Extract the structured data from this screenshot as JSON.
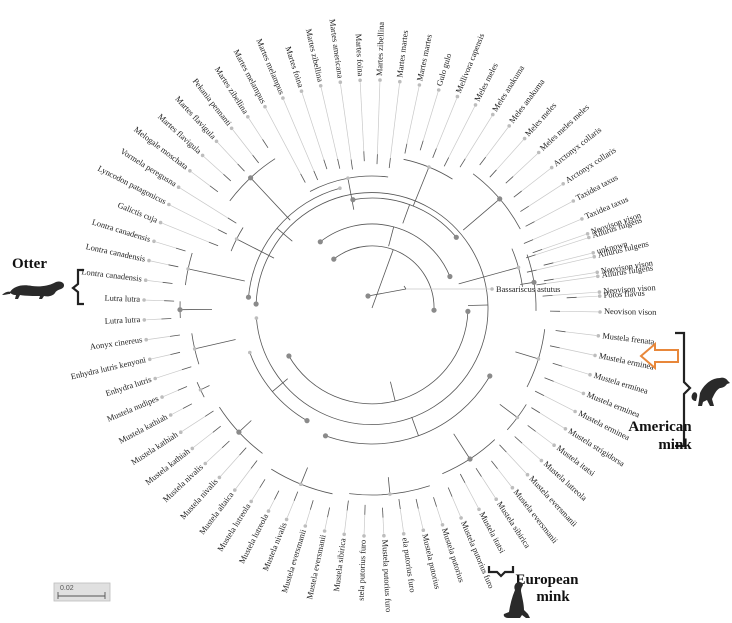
{
  "root_label": "Bassariscus astutus",
  "scale_bar": {
    "label": "0.02"
  },
  "groups": {
    "otter": "Otter",
    "american_mink": [
      "American",
      "mink"
    ],
    "european_mink": [
      "European",
      "mink"
    ]
  },
  "colors": {
    "branch": "#555555",
    "leaf_line": "#c8c8c8",
    "node_dark": "#8a8a8a",
    "node_light": "#bdbdbd",
    "bracket": "#222222",
    "arrow": "#e8873a",
    "animal": "#2a2a2a"
  },
  "leaves": [
    {
      "label": "Neovison vison",
      "angle": 19
    },
    {
      "label": "unknown",
      "angle": 14
    },
    {
      "label": "Neovison vison",
      "angle": 9
    },
    {
      "label": "Neovison vison",
      "angle": 4
    },
    {
      "label": "Neovison vison",
      "angle": -1
    },
    {
      "label": "Mustela frenata",
      "angle": -7
    },
    {
      "label": "Mustela erminea",
      "angle": -12
    },
    {
      "label": "Mustela erminea",
      "angle": -17
    },
    {
      "label": "Mustela erminea",
      "angle": -22
    },
    {
      "label": "Mustela erminea",
      "angle": -27
    },
    {
      "label": "Mustela strigidorsa",
      "angle": -32
    },
    {
      "label": "Mustela itatsi",
      "angle": -37
    },
    {
      "label": "Mustela lutreola",
      "angle": -42
    },
    {
      "label": "Mustela eversmanii",
      "angle": -47
    },
    {
      "label": "Mustela eversmanii",
      "angle": -52
    },
    {
      "label": "Mustela sibirica",
      "angle": -57
    },
    {
      "label": "Mustela itatsi",
      "angle": -62
    },
    {
      "label": "Mustela putorius furo",
      "angle": -67
    },
    {
      "label": "Mustela putorius",
      "angle": -72
    },
    {
      "label": "Mustela putorius",
      "angle": -77
    },
    {
      "label": "ela putorius furo",
      "angle": -82
    },
    {
      "label": "Mustela putorius furo",
      "angle": -87
    },
    {
      "label": "stela putorius furo",
      "angle": -92
    },
    {
      "label": "Mustela sibirica",
      "angle": -97
    },
    {
      "label": "Mustela eversmanii",
      "angle": -102
    },
    {
      "label": "Mustela eversmanii",
      "angle": -107
    },
    {
      "label": "Mustela nivalis",
      "angle": -112
    },
    {
      "label": "Mustela lutreola",
      "angle": -117
    },
    {
      "label": "Mustela lutreola",
      "angle": -122
    },
    {
      "label": "Mustela altaica",
      "angle": -127
    },
    {
      "label": "Mustela nivalis",
      "angle": -132
    },
    {
      "label": "Mustela nivalis",
      "angle": -137
    },
    {
      "label": "Mustela kathiah",
      "angle": -142
    },
    {
      "label": "Mustela kathiah",
      "angle": -147
    },
    {
      "label": "Mustela kathiah",
      "angle": -152
    },
    {
      "label": "Mustela nudipes",
      "angle": -157
    },
    {
      "label": "Enhydra lutris",
      "angle": -162
    },
    {
      "label": "Enhydra lutris kenyoni",
      "angle": -167
    },
    {
      "label": "Aonyx cinereus",
      "angle": -172
    },
    {
      "label": "Lutra lutra",
      "angle": -177
    },
    {
      "label": "Lutra lutra",
      "angle": 178
    },
    {
      "label": "Lontra canadensis",
      "angle": 173
    },
    {
      "label": "Lontra canadensis",
      "angle": 168
    },
    {
      "label": "Lontra canadensis",
      "angle": 163
    },
    {
      "label": "Galictis cuja",
      "angle": 158
    },
    {
      "label": "Lyncodon patagonicus",
      "angle": 153
    },
    {
      "label": "Vormela peregusna",
      "angle": 148
    },
    {
      "label": "Melogale moschata",
      "angle": 143
    },
    {
      "label": "Martes flavigula",
      "angle": 138
    },
    {
      "label": "Martes flavigula",
      "angle": 133
    },
    {
      "label": "Pekania pennanti",
      "angle": 128
    },
    {
      "label": "Martes zibellina",
      "angle": 123
    },
    {
      "label": "Martes melampus",
      "angle": 118
    },
    {
      "label": "Martes melampus",
      "angle": 113
    },
    {
      "label": "Martes foina",
      "angle": 108
    },
    {
      "label": "Martes zibellina",
      "angle": 103
    },
    {
      "label": "Martes americana",
      "angle": 98
    },
    {
      "label": "Martes foina",
      "angle": 93
    },
    {
      "label": "Martes zibellina",
      "angle": 88
    },
    {
      "label": "Martes martes",
      "angle": 83
    },
    {
      "label": "Martes martes",
      "angle": 78
    },
    {
      "label": "Gulo gulo",
      "angle": 73
    },
    {
      "label": "Mellivora capensis",
      "angle": 68
    },
    {
      "label": "Meles meles",
      "angle": 63
    },
    {
      "label": "Meles anakuma",
      "angle": 58
    },
    {
      "label": "Meles anakuma",
      "angle": 53
    },
    {
      "label": "Meles meles",
      "angle": 48
    },
    {
      "label": "Meles meles meles",
      "angle": 43
    },
    {
      "label": "Arctonyx collaris",
      "angle": 38
    },
    {
      "label": "Arctonyx collaris",
      "angle": 33
    },
    {
      "label": "Taxidea taxus",
      "angle": 28
    },
    {
      "label": "Taxidea taxus",
      "angle": 23
    },
    {
      "label": "Ailurus fulgens",
      "angle": 18
    },
    {
      "label": "Ailurus fulgens",
      "angle": 13
    },
    {
      "label": "Ailurus fulgens",
      "angle": 8
    },
    {
      "label": "Potos flavus",
      "angle": 3
    }
  ]
}
